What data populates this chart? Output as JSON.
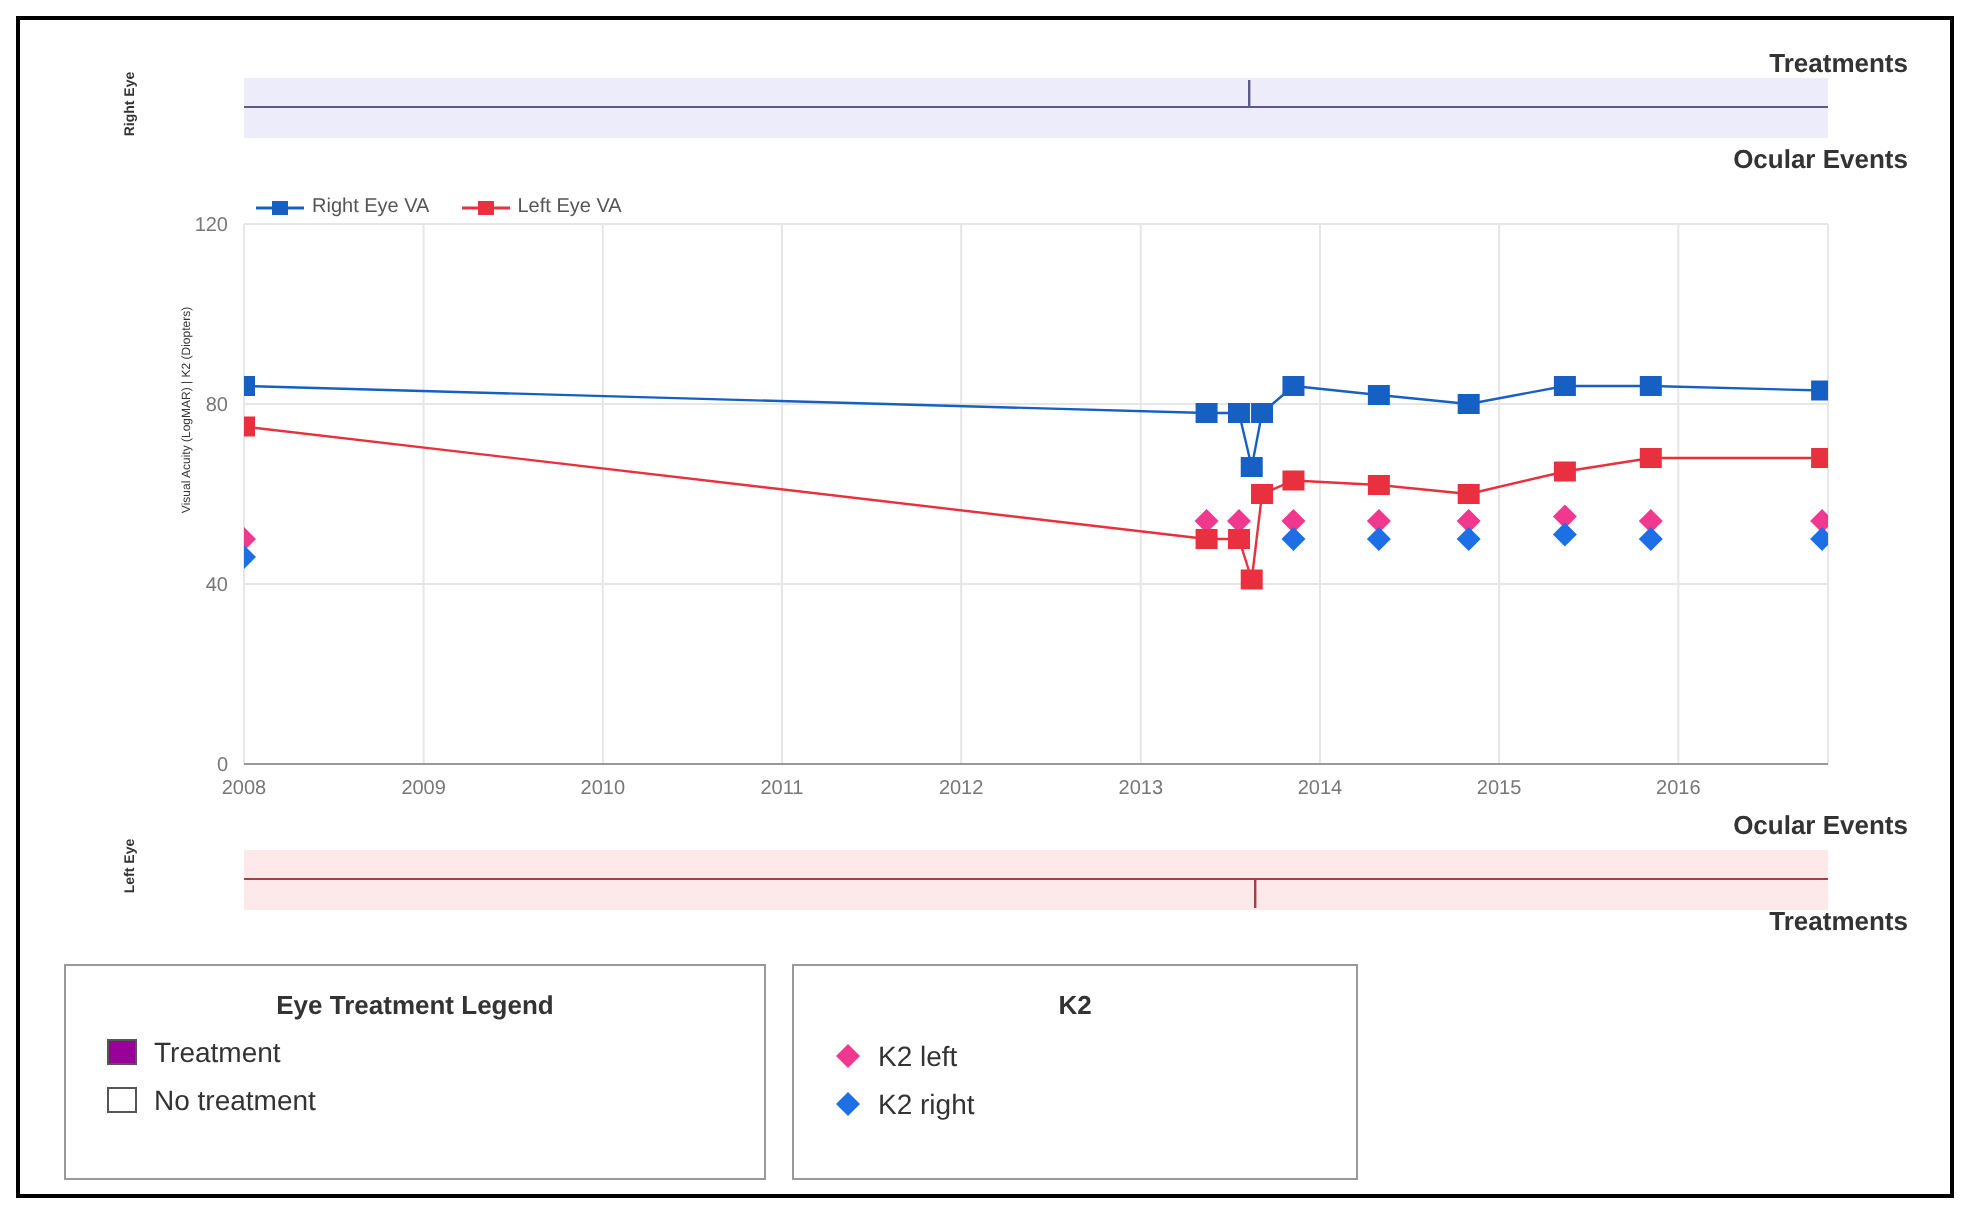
{
  "chart_data": [
    {
      "type": "other",
      "ylabel": "Right Eye",
      "annotations": [
        "Treatments",
        "Ocular Events"
      ]
    },
    {
      "type": "line",
      "ylabel": "Visual Acuity (LogMAR) | K2 (Diopters)",
      "legend_title": "K2",
      "xlim": [
        "2008",
        "2016-11"
      ],
      "xticks": [
        {
          "value": "2008",
          "label": "2008"
        },
        {
          "value": "2009",
          "label": "2009"
        },
        {
          "value": "2010",
          "label": "2010"
        },
        {
          "value": "2011",
          "label": "2011"
        },
        {
          "value": "2012",
          "label": "2012"
        },
        {
          "value": "2013",
          "label": "2013"
        },
        {
          "value": "2014",
          "label": "2014"
        },
        {
          "value": "2015",
          "label": "2015"
        },
        {
          "value": "2016",
          "label": "2016"
        }
      ],
      "ylim": [
        0,
        120
      ],
      "yticks": [
        0,
        40,
        80,
        120
      ],
      "grid": true,
      "legend": "bottom left",
      "series": [
        {
          "name": "Right Eye VA",
          "type": "line",
          "marker": "square",
          "color": "#1660c4",
          "x": [
            "2008",
            "2013-05-15",
            "2013-07-20",
            "2013-08-15",
            "2013-09-05",
            "2013-11-08",
            "2014-05-01",
            "2014-10-31",
            "2015-05-15",
            "2015-11-06",
            "2016-10-20"
          ],
          "values": [
            84,
            78,
            78,
            66,
            78,
            84,
            82,
            80,
            84,
            84,
            83
          ]
        },
        {
          "name": "Left Eye VA",
          "type": "line",
          "marker": "square",
          "color": "#e8303e",
          "x": [
            "2008",
            "2013-05-15",
            "2013-07-20",
            "2013-08-15",
            "2013-09-05",
            "2013-11-08",
            "2014-05-01",
            "2014-10-31",
            "2015-05-15",
            "2015-11-06",
            "2016-10-20"
          ],
          "values": [
            75,
            50,
            50,
            41,
            60,
            63,
            62,
            60,
            65,
            68,
            68
          ]
        },
        {
          "name": "K2 left",
          "type": "scatter",
          "marker": "diamond",
          "color": "#f0388f",
          "x": [
            "2008",
            "2013-05-15",
            "2013-07-20",
            "2013-11-08",
            "2014-05-01",
            "2014-10-31",
            "2015-05-15",
            "2015-11-06",
            "2016-10-20"
          ],
          "values": [
            50,
            54,
            54,
            54,
            54,
            54,
            55,
            54,
            54
          ]
        },
        {
          "name": "K2 right",
          "type": "scatter",
          "marker": "diamond",
          "color": "#1d6fe6",
          "x": [
            "2008",
            "2013-11-08",
            "2014-05-01",
            "2014-10-31",
            "2015-05-15",
            "2015-11-06",
            "2016-10-20"
          ],
          "values": [
            46,
            50,
            50,
            50,
            51,
            50,
            50
          ]
        }
      ]
    },
    {
      "type": "other",
      "ylabel": "Left Eye",
      "annotations": [
        "Ocular Events",
        "Treatments"
      ]
    },
    {
      "type": "other",
      "title": "Eye Treatment Legend",
      "categories": [
        "Treatment",
        "No treatment"
      ],
      "colors": [
        "#990099",
        "#ffffff"
      ]
    }
  ]
}
